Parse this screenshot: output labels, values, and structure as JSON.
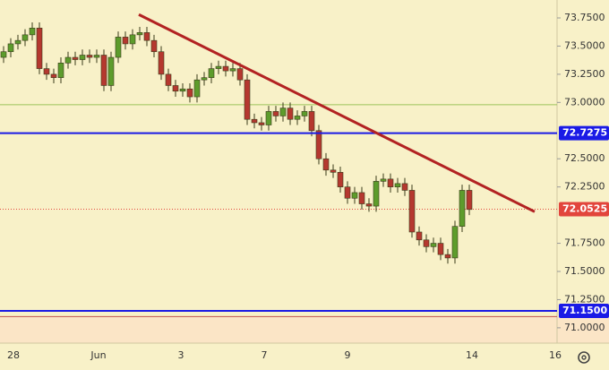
{
  "chart_data": {
    "type": "candlestick",
    "series": [
      {
        "color_up": "#5d9c2c",
        "color_down": "#b5382f",
        "open": [
          73.4,
          73.45,
          73.52,
          73.55,
          73.6,
          73.66,
          73.3,
          73.25,
          73.22,
          73.35,
          73.4,
          73.38,
          73.42,
          73.4,
          73.42,
          73.15,
          73.4,
          73.58,
          73.52,
          73.6,
          73.62,
          73.55,
          73.45,
          73.25,
          73.15,
          73.1,
          73.12,
          73.05,
          73.2,
          73.22,
          73.3,
          73.32,
          73.28,
          73.3,
          73.2,
          72.85,
          72.82,
          72.8,
          72.92,
          72.88,
          72.95,
          72.85,
          72.88,
          72.92,
          72.75,
          72.5,
          72.4,
          72.38,
          72.25,
          72.15,
          72.2,
          72.1,
          72.08,
          72.3,
          72.32,
          72.25,
          72.28,
          72.22,
          71.85,
          71.78,
          71.72,
          71.75,
          71.65,
          71.62,
          71.9,
          72.22
        ],
        "high": [
          73.5,
          73.57,
          73.6,
          73.65,
          73.71,
          73.71,
          73.35,
          73.3,
          73.4,
          73.45,
          73.45,
          73.47,
          73.47,
          73.47,
          73.47,
          73.45,
          73.63,
          73.63,
          73.65,
          73.67,
          73.67,
          73.6,
          73.5,
          73.3,
          73.2,
          73.17,
          73.17,
          73.25,
          73.27,
          73.35,
          73.37,
          73.37,
          73.35,
          73.35,
          73.25,
          72.9,
          72.87,
          72.97,
          72.97,
          73.0,
          73.0,
          72.93,
          72.97,
          72.97,
          72.8,
          72.55,
          72.45,
          72.43,
          72.3,
          72.25,
          72.25,
          72.15,
          72.35,
          72.37,
          72.37,
          72.33,
          72.33,
          72.27,
          71.9,
          71.83,
          71.8,
          71.8,
          71.7,
          71.95,
          72.27,
          72.27
        ],
        "low": [
          73.35,
          73.4,
          73.47,
          73.5,
          73.55,
          73.25,
          73.2,
          73.17,
          73.17,
          73.3,
          73.33,
          73.33,
          73.35,
          73.35,
          73.1,
          73.1,
          73.35,
          73.47,
          73.47,
          73.55,
          73.5,
          73.4,
          73.2,
          73.1,
          73.05,
          73.05,
          73.0,
          73.0,
          73.15,
          73.17,
          73.25,
          73.23,
          73.23,
          73.15,
          72.8,
          72.77,
          72.75,
          72.75,
          72.83,
          72.83,
          72.8,
          72.8,
          72.83,
          72.7,
          72.45,
          72.35,
          72.33,
          72.2,
          72.1,
          72.1,
          72.05,
          72.03,
          72.03,
          72.25,
          72.2,
          72.2,
          72.17,
          71.8,
          71.73,
          71.67,
          71.67,
          71.6,
          71.57,
          71.57,
          71.85,
          72.0
        ],
        "close": [
          73.45,
          73.52,
          73.55,
          73.6,
          73.66,
          73.3,
          73.25,
          73.22,
          73.35,
          73.4,
          73.38,
          73.42,
          73.4,
          73.42,
          73.15,
          73.4,
          73.58,
          73.52,
          73.6,
          73.62,
          73.55,
          73.45,
          73.25,
          73.15,
          73.1,
          73.12,
          73.05,
          73.2,
          73.22,
          73.3,
          73.32,
          73.28,
          73.3,
          73.2,
          72.85,
          72.82,
          72.8,
          72.92,
          72.88,
          72.95,
          72.85,
          72.88,
          72.92,
          72.75,
          72.5,
          72.4,
          72.38,
          72.25,
          72.15,
          72.2,
          72.1,
          72.08,
          72.3,
          72.32,
          72.25,
          72.28,
          72.22,
          71.85,
          71.78,
          71.72,
          71.75,
          71.65,
          71.62,
          71.9,
          72.22,
          72.05
        ]
      }
    ],
    "ylim": [
      70.864,
      73.909
    ],
    "yticks": [
      {
        "value": 73.75,
        "label": "73.7500"
      },
      {
        "value": 73.5,
        "label": "73.5000"
      },
      {
        "value": 73.25,
        "label": "73.2500"
      },
      {
        "value": 73.0,
        "label": "73.0000"
      },
      {
        "value": 72.5,
        "label": "72.5000"
      },
      {
        "value": 72.25,
        "label": "72.2500"
      },
      {
        "value": 71.75,
        "label": "71.7500"
      },
      {
        "value": 71.5,
        "label": "71.5000"
      },
      {
        "value": 71.25,
        "label": "71.2500"
      },
      {
        "value": 71.0,
        "label": "71.0000"
      }
    ],
    "xtick_labels": [
      "28",
      "Jun",
      "3",
      "7",
      "9",
      "14",
      "16"
    ],
    "levels": [
      {
        "value": 72.7275,
        "color": "#1a1ae6"
      },
      {
        "value": 71.15,
        "label": "71.1500",
        "color": "#1a1ae6"
      }
    ],
    "last_price": {
      "value": 72.0525,
      "color": "#e2453c"
    },
    "lines": [
      {
        "value": 72.98,
        "color": "#9cc45a"
      },
      {
        "value": 71.1,
        "color": "#c0504d"
      }
    ],
    "trendline": {
      "start": 73.78,
      "end": 72.03,
      "color": "#b22222"
    }
  }
}
